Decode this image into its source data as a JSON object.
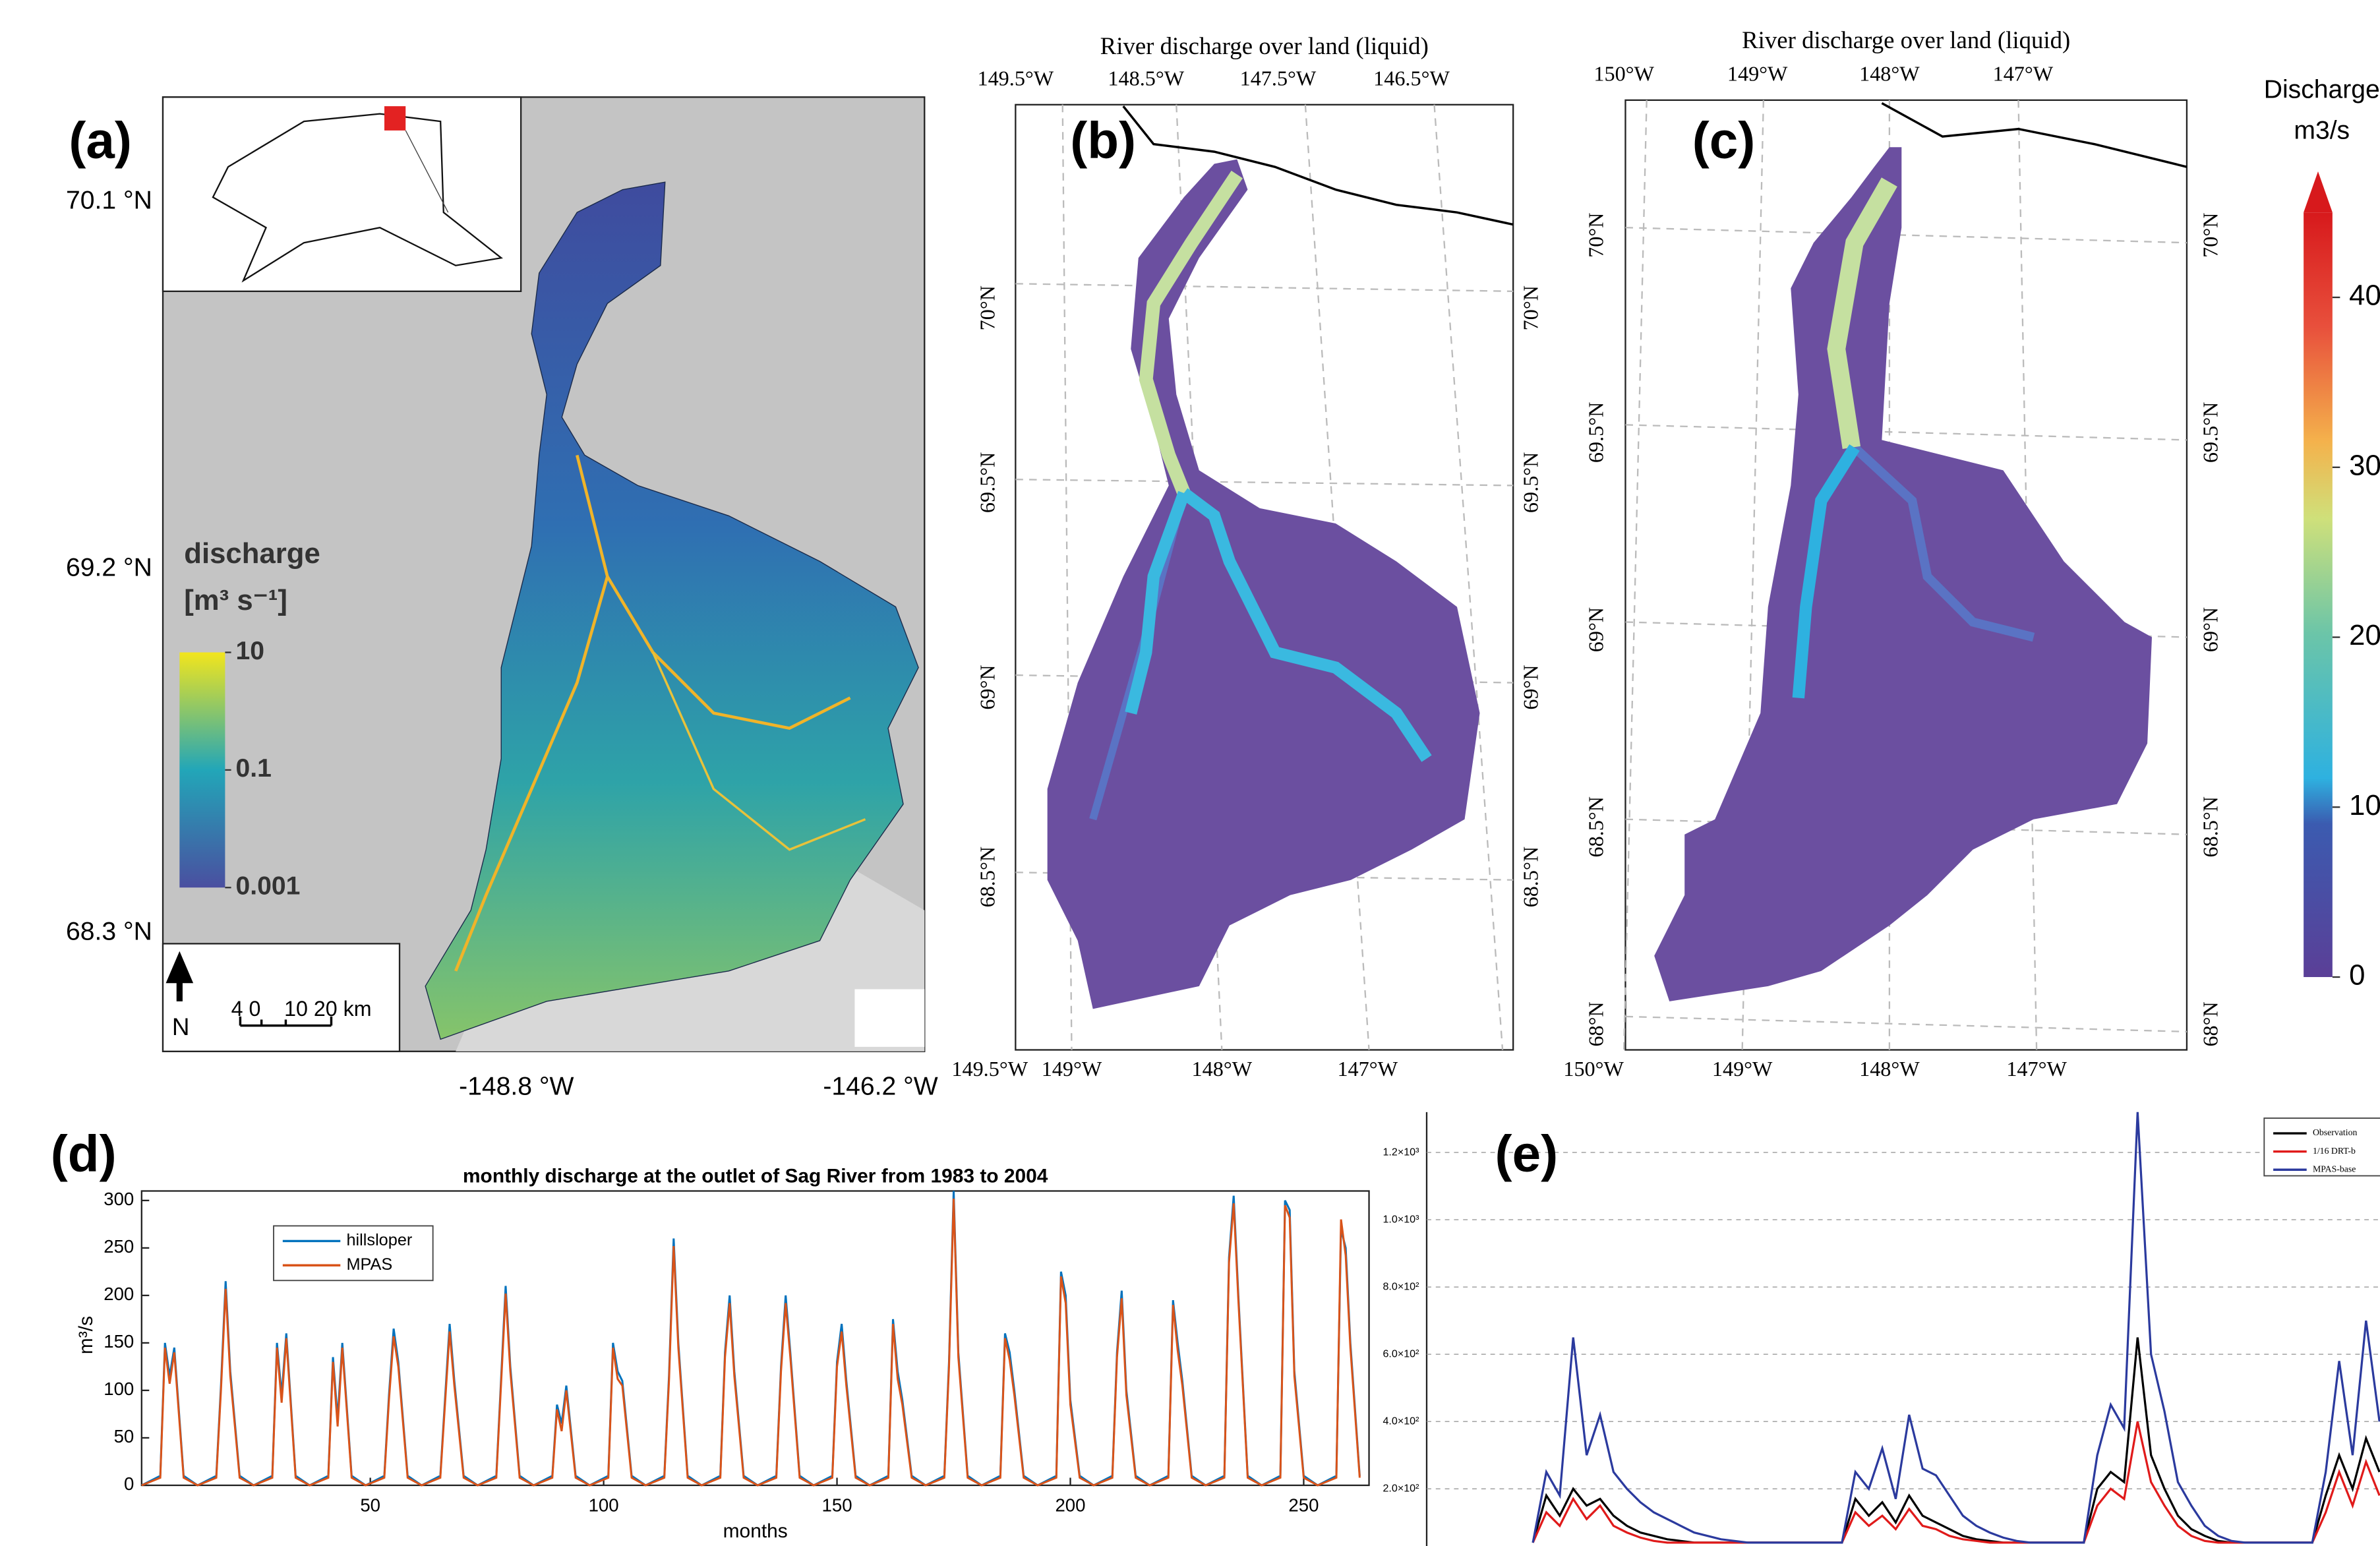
{
  "maps": {
    "a": {
      "panel_label": "(a)",
      "lat_labels": [
        "70.1 °N",
        "69.2 °N",
        "68.3 °N"
      ],
      "lon_labels": [
        "-148.8 °W",
        "-146.2 °W"
      ],
      "legend_title": "discharge",
      "legend_unit": "[m³ s⁻¹]",
      "colorbar": {
        "ticks": [
          10,
          0.1,
          0.001
        ],
        "lim": [
          0.001,
          10
        ],
        "log": true
      },
      "north": "N",
      "scale_labels": [
        "4 0",
        "10 20 km"
      ]
    },
    "b": {
      "panel_label": "(b)",
      "title": "River discharge over land (liquid)",
      "top_lon": [
        "149.5°W",
        "148.5°W",
        "147.5°W",
        "146.5°W"
      ],
      "bottom_lon": [
        "149.5°W",
        "149°W",
        "148°W",
        "147°W"
      ],
      "left_lat": [
        "70°N",
        "69.5°N",
        "69°N",
        "68.5°N"
      ],
      "right_lat": [
        "70°N",
        "69.5°N",
        "69°N",
        "68.5°N"
      ]
    },
    "c": {
      "panel_label": "(c)",
      "title": "River discharge over land (liquid)",
      "top_lon": [
        "150°W",
        "149°W",
        "148°W",
        "147°W"
      ],
      "bottom_lon": [
        "150°W",
        "149°W",
        "148°W",
        "147°W"
      ],
      "left_lat": [
        "70°N",
        "69.5°N",
        "69°N",
        "68.5°N",
        "68°N"
      ],
      "right_lat": [
        "70°N",
        "69.5°N",
        "69°N",
        "68.5°N",
        "68°N"
      ],
      "colorbar": {
        "title": "Discharge",
        "unit": "m3/s",
        "ticks": [
          0,
          10,
          20,
          30,
          40
        ],
        "lim": [
          0,
          45
        ]
      }
    }
  },
  "chart_data": [
    {
      "type": "line",
      "panel_label": "(d)",
      "title": "monthly discharge at the outlet of Sag River from 1983 to 2004",
      "xlabel": "months",
      "ylabel": "m³/s",
      "x": [
        1,
        5,
        6,
        7,
        8,
        10,
        13,
        17,
        18,
        19,
        20,
        22,
        25,
        29,
        30,
        31,
        32,
        34,
        37,
        41,
        42,
        43,
        44,
        46,
        49,
        53,
        54,
        55,
        56,
        58,
        61,
        65,
        66,
        67,
        68,
        70,
        73,
        77,
        78,
        79,
        80,
        82,
        85,
        89,
        90,
        91,
        92,
        94,
        97,
        101,
        102,
        103,
        104,
        106,
        109,
        113,
        114,
        115,
        116,
        118,
        121,
        125,
        126,
        127,
        128,
        130,
        133,
        137,
        138,
        139,
        140,
        142,
        145,
        149,
        150,
        151,
        152,
        154,
        157,
        161,
        162,
        163,
        164,
        166,
        169,
        173,
        174,
        175,
        176,
        178,
        181,
        185,
        186,
        187,
        188,
        190,
        193,
        197,
        198,
        199,
        200,
        202,
        205,
        209,
        210,
        211,
        212,
        214,
        217,
        221,
        222,
        223,
        224,
        226,
        229,
        233,
        234,
        235,
        236,
        238,
        241,
        245,
        246,
        247,
        248,
        250,
        253,
        257,
        258,
        259,
        260,
        262
      ],
      "series": [
        {
          "name": "hillsloper",
          "color": "#0072bd",
          "values": [
            0,
            10,
            150,
            115,
            145,
            10,
            0,
            10,
            105,
            215,
            120,
            10,
            0,
            10,
            150,
            95,
            160,
            10,
            0,
            10,
            135,
            70,
            150,
            10,
            0,
            10,
            95,
            165,
            130,
            10,
            0,
            10,
            90,
            170,
            110,
            10,
            0,
            10,
            110,
            210,
            125,
            10,
            0,
            10,
            85,
            65,
            105,
            10,
            0,
            10,
            150,
            120,
            110,
            10,
            0,
            10,
            115,
            260,
            150,
            10,
            0,
            10,
            140,
            200,
            120,
            10,
            0,
            10,
            125,
            200,
            140,
            10,
            0,
            10,
            130,
            170,
            110,
            10,
            0,
            10,
            175,
            120,
            90,
            10,
            0,
            10,
            130,
            310,
            140,
            10,
            0,
            10,
            160,
            140,
            100,
            10,
            0,
            10,
            225,
            200,
            90,
            10,
            0,
            10,
            140,
            205,
            100,
            10,
            0,
            10,
            195,
            150,
            110,
            10,
            0,
            10,
            240,
            305,
            200,
            10,
            0,
            10,
            300,
            290,
            120,
            10,
            0,
            10,
            270,
            250,
            150,
            10
          ]
        },
        {
          "name": "MPAS",
          "color": "#d95319",
          "values": [
            0,
            8,
            145,
            107,
            140,
            8,
            0,
            8,
            100,
            207,
            115,
            8,
            0,
            8,
            145,
            87,
            155,
            8,
            0,
            8,
            130,
            62,
            145,
            8,
            0,
            8,
            90,
            157,
            125,
            8,
            0,
            8,
            85,
            162,
            105,
            8,
            0,
            8,
            105,
            202,
            120,
            8,
            0,
            8,
            80,
            57,
            100,
            8,
            0,
            8,
            145,
            112,
            105,
            8,
            0,
            8,
            110,
            252,
            145,
            8,
            0,
            8,
            135,
            192,
            115,
            8,
            0,
            8,
            120,
            192,
            135,
            8,
            0,
            8,
            125,
            162,
            105,
            8,
            0,
            8,
            170,
            112,
            85,
            8,
            0,
            8,
            125,
            302,
            135,
            8,
            0,
            8,
            155,
            132,
            95,
            8,
            0,
            8,
            220,
            192,
            85,
            8,
            0,
            8,
            135,
            197,
            95,
            8,
            0,
            8,
            190,
            142,
            105,
            8,
            0,
            8,
            235,
            297,
            195,
            8,
            0,
            8,
            295,
            282,
            115,
            8,
            0,
            8,
            280,
            242,
            145,
            8
          ]
        }
      ],
      "xlim": [
        1,
        264
      ],
      "ylim": [
        0,
        310
      ],
      "xticks": [
        50,
        100,
        150,
        200,
        250
      ],
      "yticks": [
        0,
        50,
        100,
        150,
        200,
        250,
        300
      ],
      "legend": "upper left"
    },
    {
      "type": "line",
      "panel_label": "(e)",
      "grid": true,
      "legend": "upper right",
      "series": [
        {
          "name": "Observation",
          "color": "#000000",
          "values": [
            40,
            180,
            120,
            200,
            150,
            170,
            120,
            90,
            70,
            60,
            50,
            45,
            40,
            40,
            40,
            40,
            40,
            40,
            40,
            40,
            40,
            40,
            40,
            40,
            170,
            120,
            160,
            100,
            180,
            120,
            100,
            80,
            60,
            50,
            45,
            40,
            40,
            40,
            40,
            40,
            40,
            40,
            200,
            250,
            220,
            650,
            300,
            200,
            120,
            80,
            60,
            45,
            40,
            40,
            40,
            40,
            40,
            40,
            40,
            180,
            300,
            200,
            350,
            250
          ]
        },
        {
          "name": "1/16 DRT-b",
          "color": "#e01a1a",
          "values": [
            40,
            130,
            90,
            170,
            110,
            150,
            90,
            70,
            55,
            45,
            40,
            40,
            40,
            40,
            40,
            40,
            40,
            40,
            40,
            40,
            40,
            40,
            40,
            40,
            130,
            90,
            120,
            80,
            140,
            90,
            80,
            60,
            50,
            45,
            40,
            40,
            40,
            40,
            40,
            40,
            40,
            40,
            150,
            200,
            170,
            400,
            220,
            150,
            90,
            60,
            45,
            40,
            40,
            40,
            40,
            40,
            40,
            40,
            40,
            130,
            250,
            150,
            280,
            180
          ]
        },
        {
          "name": "MPAS-base",
          "color": "#2b3a9e",
          "values": [
            40,
            250,
            180,
            650,
            300,
            420,
            250,
            200,
            160,
            130,
            110,
            90,
            70,
            60,
            50,
            45,
            40,
            40,
            40,
            40,
            40,
            40,
            40,
            40,
            250,
            200,
            320,
            170,
            420,
            260,
            240,
            180,
            120,
            90,
            70,
            55,
            45,
            40,
            40,
            40,
            40,
            40,
            300,
            450,
            380,
            1320,
            600,
            430,
            220,
            150,
            90,
            60,
            45,
            40,
            40,
            40,
            40,
            40,
            40,
            250,
            580,
            300,
            700,
            400
          ]
        }
      ],
      "ylim": [
        30,
        1320
      ],
      "yticks": [
        {
          "value": 200,
          "label": "2.0×10²"
        },
        {
          "value": 400,
          "label": "4.0×10²"
        },
        {
          "value": 600,
          "label": "6.0×10²"
        },
        {
          "value": 800,
          "label": "8.0×10²"
        },
        {
          "value": 1000,
          "label": "1.0×10³"
        },
        {
          "value": 1200,
          "label": "1.2×10³"
        }
      ]
    }
  ]
}
